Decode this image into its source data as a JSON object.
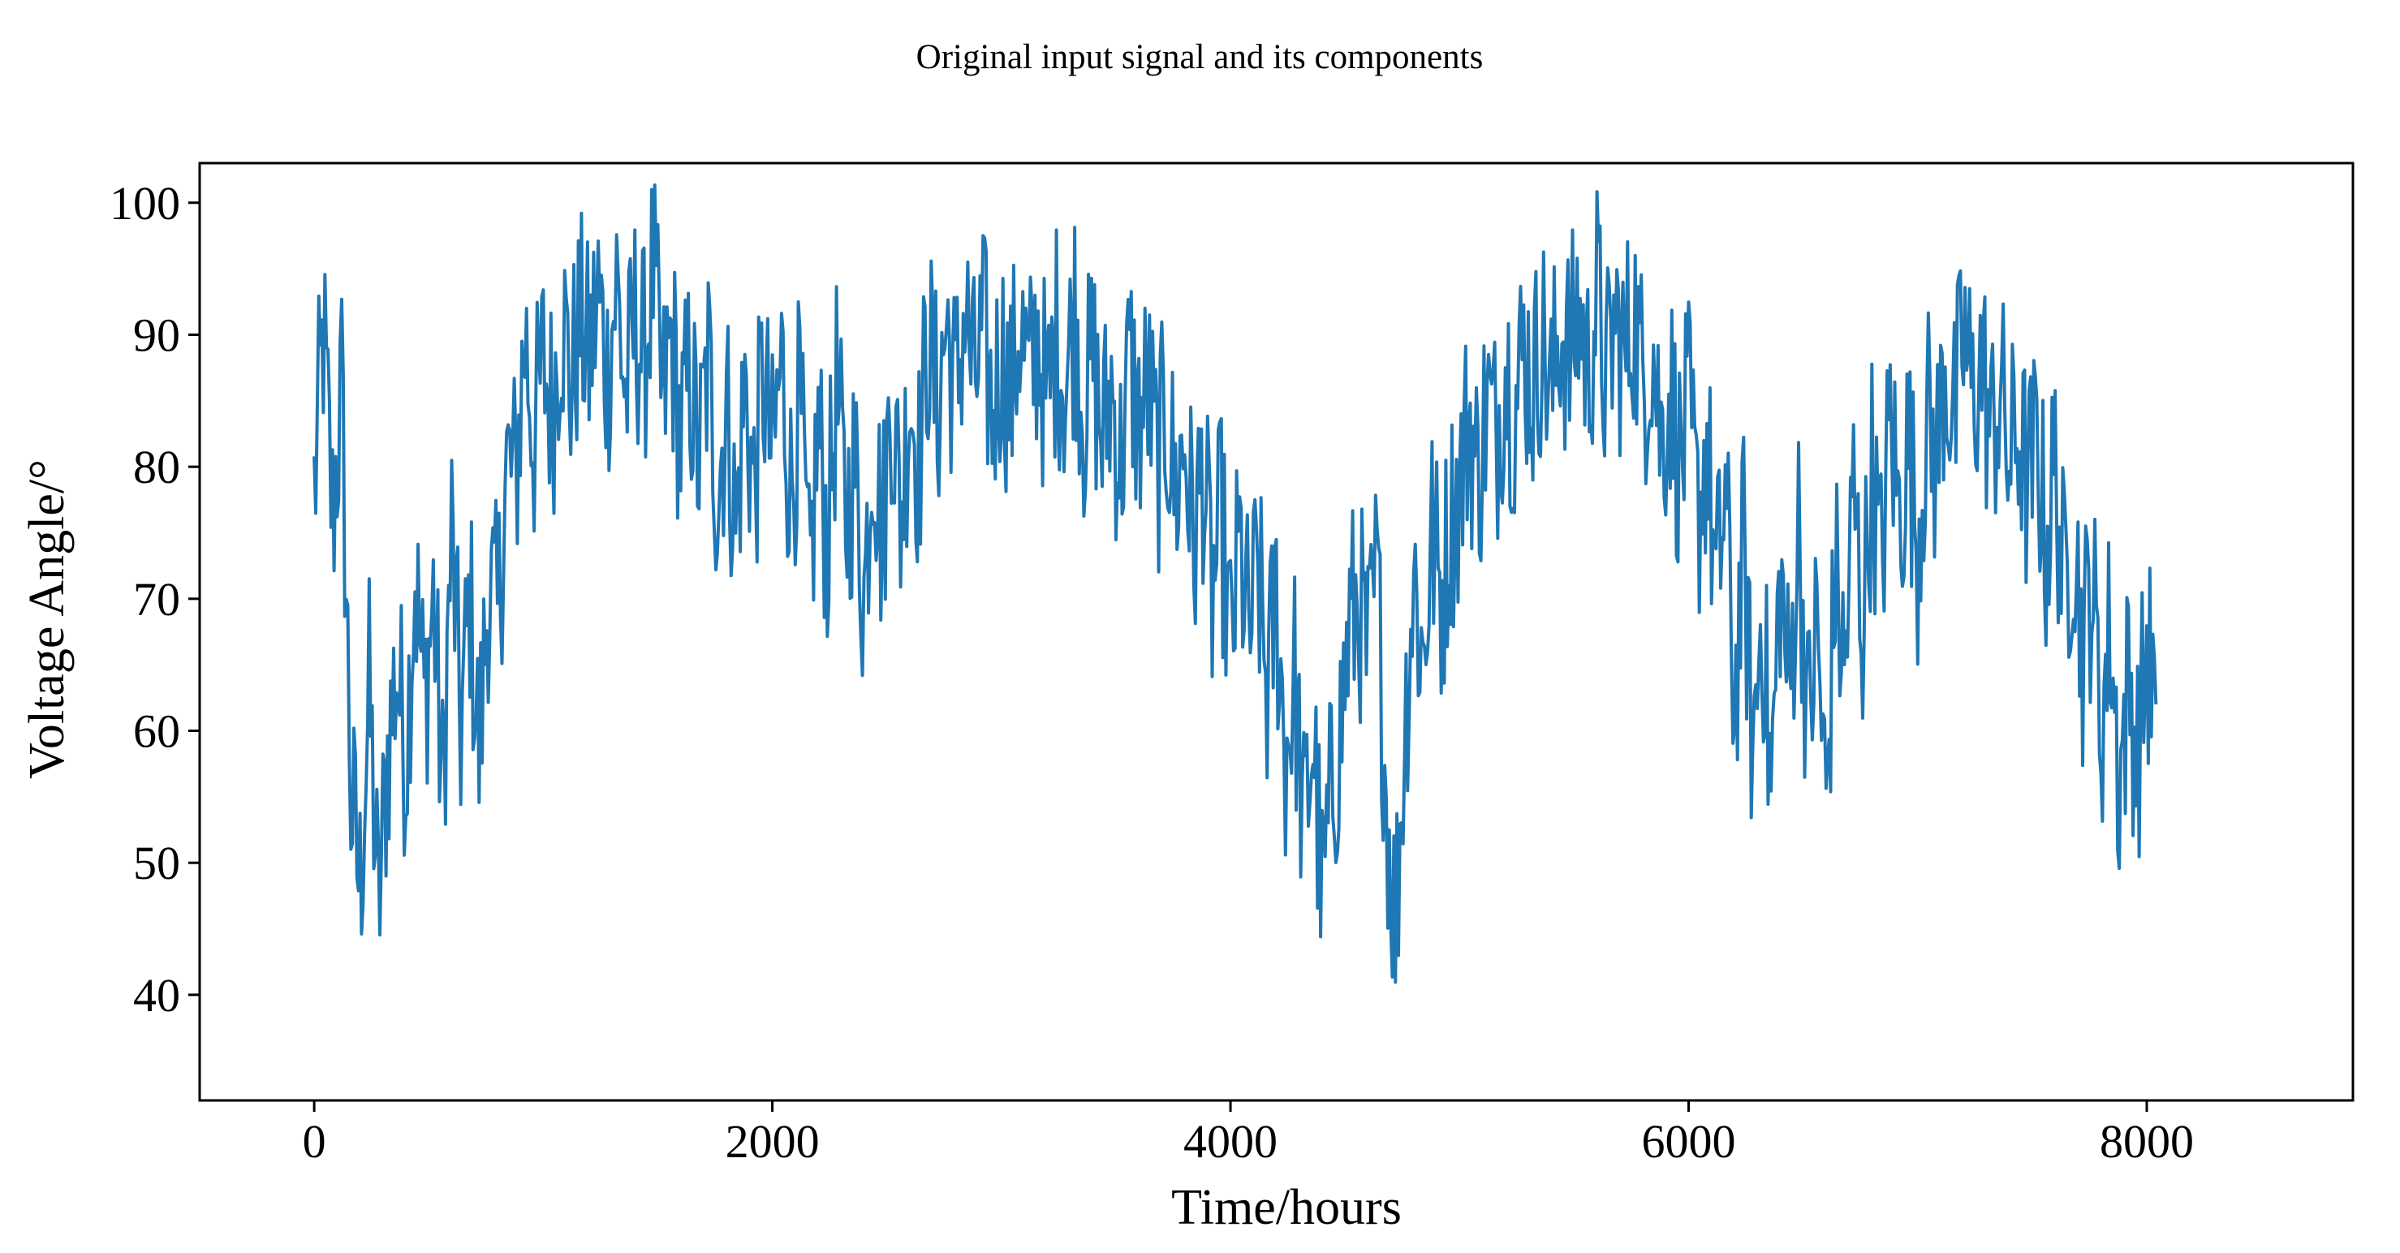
{
  "chart_data": {
    "type": "line",
    "title": "Original input signal and its components",
    "xlabel": "Time/hours",
    "ylabel": "Voltage Angle/°",
    "xlim": [
      -500,
      8900
    ],
    "ylim": [
      32,
      103
    ],
    "x_ticks": [
      0,
      2000,
      4000,
      6000,
      8000
    ],
    "y_ticks": [
      40,
      50,
      60,
      70,
      80,
      90,
      100
    ],
    "grid": false,
    "legend": "none",
    "series": [
      {
        "color": "#1f77b4",
        "x_start": 0,
        "x_step": 40,
        "values": [
          78,
          90,
          76,
          86,
          55,
          48,
          63,
          46,
          58,
          65,
          58,
          72,
          62,
          70,
          55,
          75,
          60,
          70,
          58,
          71,
          68,
          80,
          79,
          90,
          82,
          88,
          84,
          92,
          86,
          91,
          88,
          93,
          87,
          94,
          85,
          91,
          88,
          95,
          84,
          90,
          82,
          87,
          80,
          88,
          78,
          85,
          75,
          86,
          78,
          87,
          80,
          88,
          78,
          85,
          70,
          83,
          74,
          86,
          76,
          80,
          70,
          83,
          74,
          86,
          76,
          86,
          80,
          90,
          84,
          91,
          85,
          92,
          86,
          90,
          84,
          89,
          85,
          91,
          86,
          90,
          84,
          90,
          86,
          92,
          84,
          88,
          82,
          86,
          80,
          88,
          83,
          86,
          80,
          84,
          78,
          82,
          74,
          80,
          70,
          76,
          66,
          74,
          67,
          72,
          63,
          70,
          58,
          64,
          52,
          60,
          47,
          55,
          60,
          68,
          70,
          65,
          72,
          55,
          45,
          60,
          72,
          65,
          75,
          70,
          76,
          78,
          84,
          79,
          85,
          82,
          88,
          84,
          89,
          86,
          90,
          85,
          91,
          88,
          92,
          87,
          93,
          86,
          91,
          88,
          92,
          86,
          90,
          82,
          86,
          80,
          84,
          76,
          82,
          70,
          78,
          62,
          74,
          58,
          70,
          55,
          72,
          62,
          76,
          60,
          68,
          54,
          72,
          64,
          78,
          68,
          80,
          72,
          84,
          76,
          82,
          74,
          84,
          80,
          88,
          83,
          90,
          85,
          88,
          82,
          86,
          80,
          83,
          78,
          82,
          74,
          80,
          70,
          76,
          66,
          72,
          60,
          68,
          56,
          64,
          58,
          66,
          62
        ]
      }
    ]
  }
}
